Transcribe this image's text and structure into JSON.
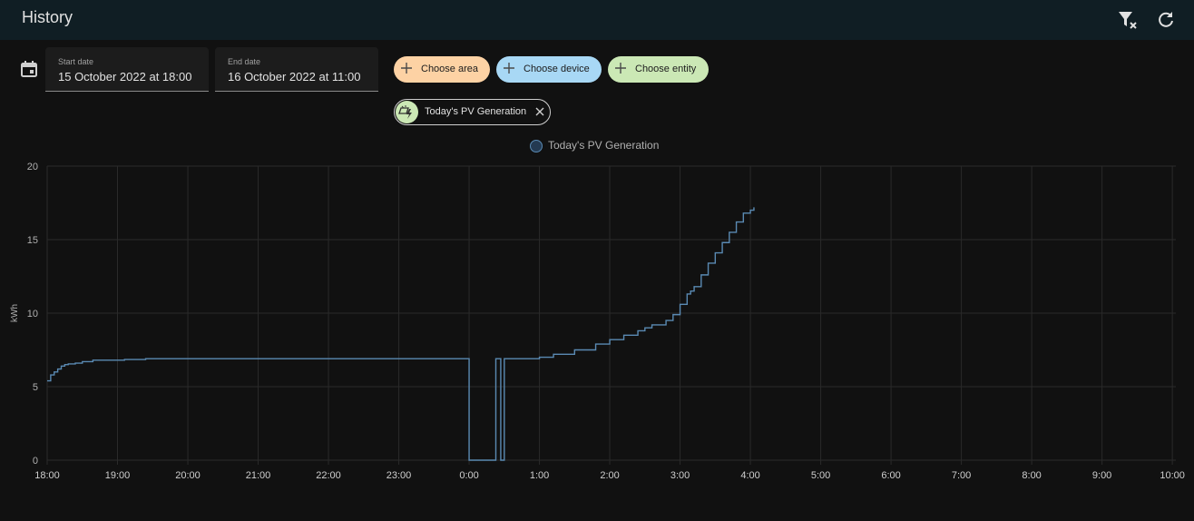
{
  "header": {
    "title": "History",
    "clear_filter_icon": "filter-remove-icon",
    "refresh_icon": "refresh-icon"
  },
  "date_picker": {
    "icon": "calendar-icon",
    "start": {
      "label": "Start date",
      "value": "15 October 2022 at 18:00"
    },
    "end": {
      "label": "End date",
      "value": "16 October 2022 at 11:00"
    }
  },
  "target_picker": {
    "choose_area": {
      "label": "Choose area",
      "color": "#fdd2a4"
    },
    "choose_device": {
      "label": "Choose device",
      "color": "#a8d8f5"
    },
    "choose_entity": {
      "label": "Choose entity",
      "color": "#cbe8b5"
    },
    "selected": [
      {
        "label": "Today's PV Generation",
        "icon": "solar-power-icon"
      }
    ]
  },
  "colors": {
    "series": "#5a8ab3",
    "background": "#111111",
    "grid": "#2a2a2a",
    "header": "#101e24"
  },
  "chart_data": {
    "type": "line",
    "ylabel": "kWh",
    "ylim": [
      0,
      20
    ],
    "yticks": [
      0,
      5,
      10,
      15,
      20
    ],
    "xticks": [
      "18:00",
      "19:00",
      "20:00",
      "21:00",
      "22:00",
      "23:00",
      "0:00",
      "1:00",
      "2:00",
      "3:00",
      "4:00",
      "5:00",
      "6:00",
      "7:00",
      "8:00",
      "9:00",
      "10:00"
    ],
    "xrange_hours": [
      0,
      16.05
    ],
    "grid": true,
    "legend": "top-center",
    "step": true,
    "series": [
      {
        "name": "Today's PV Generation",
        "x": [
          0,
          0.05,
          0.1,
          0.15,
          0.2,
          0.25,
          0.3,
          0.4,
          0.5,
          0.65,
          0.85,
          1.1,
          1.4,
          1.7,
          6.0,
          6.0,
          6.38,
          6.38,
          6.45,
          6.45,
          6.5,
          6.5,
          6.6,
          7.0,
          7.2,
          7.5,
          7.8,
          8.0,
          8.2,
          8.4,
          8.5,
          8.6,
          8.8,
          8.9,
          9.0,
          9.1,
          9.15,
          9.2,
          9.3,
          9.4,
          9.5,
          9.6,
          9.7,
          9.8,
          9.9,
          10.0,
          10.05
        ],
        "y": [
          5.4,
          5.8,
          6.0,
          6.2,
          6.4,
          6.5,
          6.55,
          6.6,
          6.7,
          6.8,
          6.8,
          6.85,
          6.9,
          6.9,
          6.9,
          0,
          0,
          6.9,
          6.9,
          0,
          0,
          6.9,
          6.9,
          7.0,
          7.2,
          7.5,
          7.9,
          8.2,
          8.5,
          8.8,
          9.0,
          9.2,
          9.5,
          9.9,
          10.6,
          11.3,
          11.5,
          11.8,
          12.6,
          13.4,
          14.1,
          14.8,
          15.5,
          16.2,
          16.8,
          17.0,
          17.2
        ]
      }
    ]
  }
}
